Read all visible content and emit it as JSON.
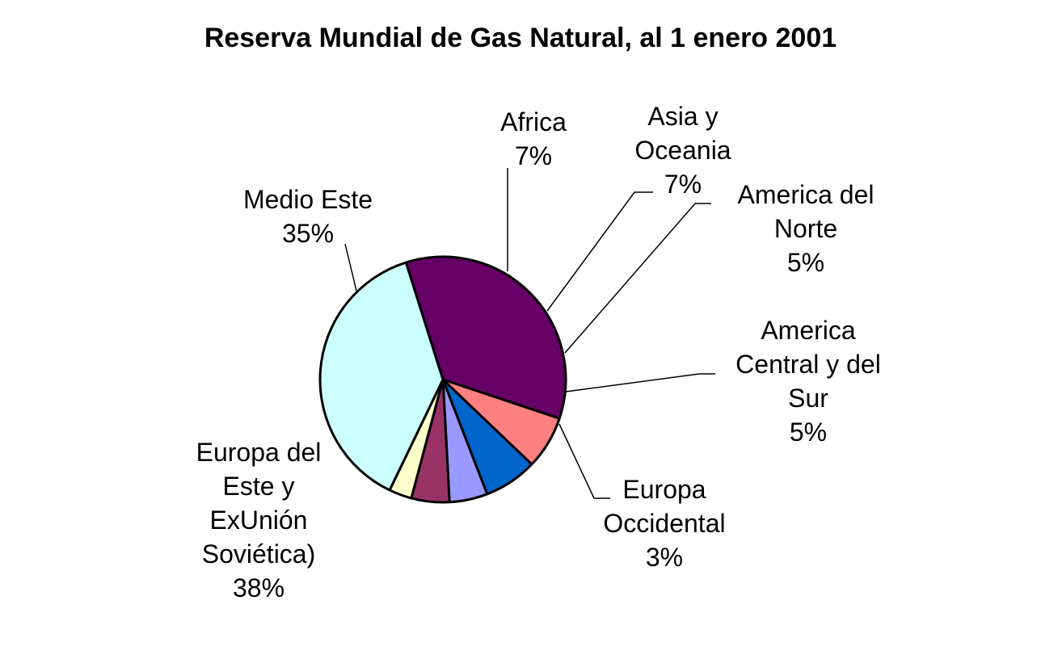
{
  "chart_data": {
    "type": "pie",
    "title": "Reserva Mundial de Gas Natural, al 1 enero 2001",
    "slices": [
      {
        "label": "Medio Este",
        "label_lines": [
          "Medio Este"
        ],
        "percent_label": "35%",
        "value": 35,
        "color": "#660066"
      },
      {
        "label": "Africa",
        "label_lines": [
          "Africa"
        ],
        "percent_label": "7%",
        "value": 7,
        "color": "#FF8080"
      },
      {
        "label": "Asia y Oceania",
        "label_lines": [
          "Asia y",
          "Oceania"
        ],
        "percent_label": "7%",
        "value": 7,
        "color": "#0066CC"
      },
      {
        "label": "America del Norte",
        "label_lines": [
          "America del",
          "Norte"
        ],
        "percent_label": "5%",
        "value": 5,
        "color": "#9999FF"
      },
      {
        "label": "America Central y del Sur",
        "label_lines": [
          "America",
          "Central y del",
          "Sur"
        ],
        "percent_label": "5%",
        "value": 5,
        "color": "#993366"
      },
      {
        "label": "Europa Occidental",
        "label_lines": [
          "Europa",
          "Occidental"
        ],
        "percent_label": "3%",
        "value": 3,
        "color": "#FFFFCC"
      },
      {
        "label": "Europa del Este y ExUnión Soviética)",
        "label_lines": [
          "Europa del",
          "Este y",
          "ExUnión",
          "Soviética)"
        ],
        "percent_label": "38%",
        "value": 38,
        "color": "#CCFFFF"
      }
    ],
    "legend": "none"
  }
}
